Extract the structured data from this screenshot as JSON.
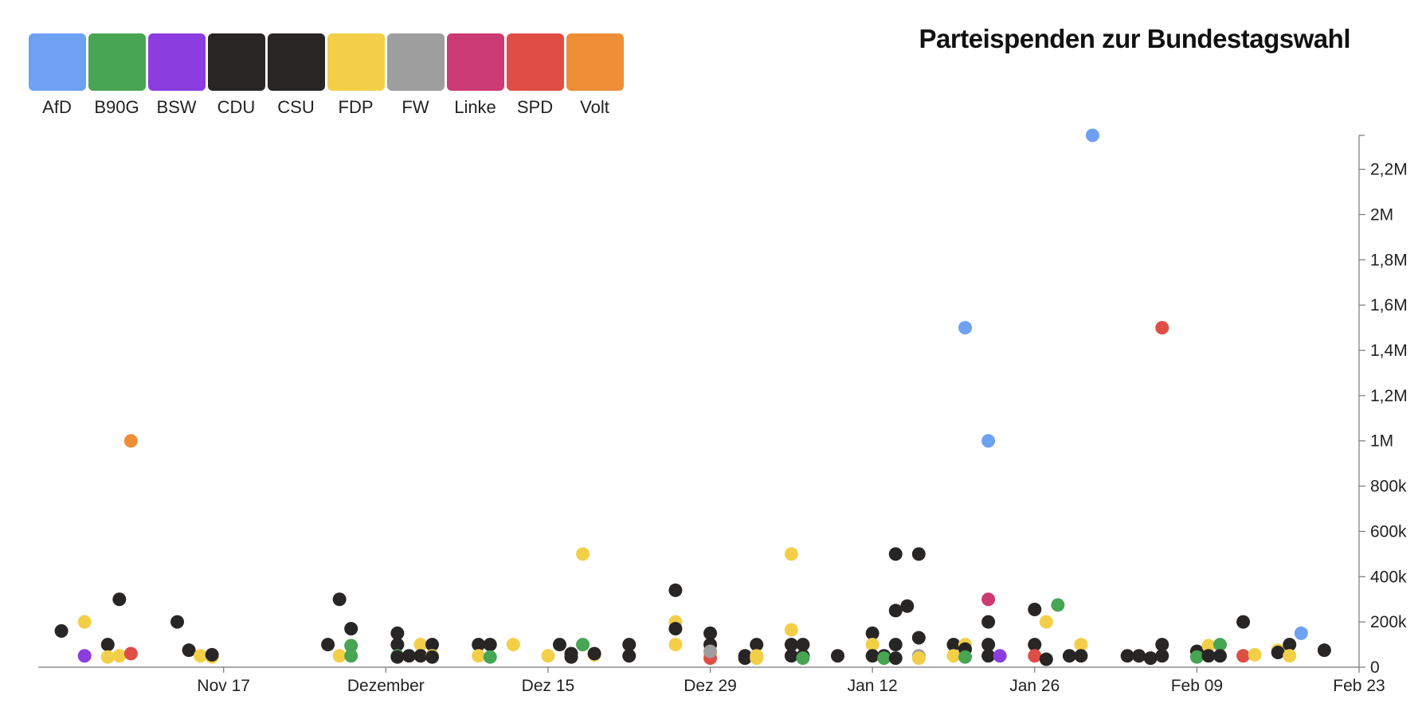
{
  "title": "Parteispenden zur Bundestagswahl",
  "legend": [
    {
      "label": "AfD",
      "color": "#6ea1f2"
    },
    {
      "label": "B90G",
      "color": "#47a553"
    },
    {
      "label": "BSW",
      "color": "#8b3ddf"
    },
    {
      "label": "CDU",
      "color": "#282525"
    },
    {
      "label": "CSU",
      "color": "#282525"
    },
    {
      "label": "FDP",
      "color": "#f3cf48"
    },
    {
      "label": "FW",
      "color": "#9e9e9e"
    },
    {
      "label": "Linke",
      "color": "#cc3b73"
    },
    {
      "label": "SPD",
      "color": "#df4e44"
    },
    {
      "label": "Volt",
      "color": "#ee8e37"
    }
  ],
  "chart_data": {
    "type": "scatter",
    "x_axis": {
      "range": [
        "2024-11-01",
        "2025-02-23"
      ],
      "ticks": [
        {
          "date": "2024-11-17",
          "label": "Nov 17"
        },
        {
          "date": "2024-12-01",
          "label": "Dezember"
        },
        {
          "date": "2024-12-15",
          "label": "Dez 15"
        },
        {
          "date": "2024-12-29",
          "label": "Dez 29"
        },
        {
          "date": "2025-01-12",
          "label": "Jan 12"
        },
        {
          "date": "2025-01-26",
          "label": "Jan 26"
        },
        {
          "date": "2025-02-09",
          "label": "Feb 09"
        },
        {
          "date": "2025-02-23",
          "label": "Feb 23"
        }
      ]
    },
    "y_axis": {
      "range": [
        0,
        2350000
      ],
      "position": "right",
      "ticks": [
        {
          "value": 0,
          "label": "0"
        },
        {
          "value": 200000,
          "label": "200k"
        },
        {
          "value": 400000,
          "label": "400k"
        },
        {
          "value": 600000,
          "label": "600k"
        },
        {
          "value": 800000,
          "label": "800k"
        },
        {
          "value": 1000000,
          "label": "1M"
        },
        {
          "value": 1200000,
          "label": "1,2M"
        },
        {
          "value": 1400000,
          "label": "1,4M"
        },
        {
          "value": 1600000,
          "label": "1,6M"
        },
        {
          "value": 1800000,
          "label": "1,8M"
        },
        {
          "value": 2000000,
          "label": "2M"
        },
        {
          "value": 2200000,
          "label": "2,2M"
        }
      ]
    },
    "points": [
      {
        "date": "2024-11-03",
        "value": 160000,
        "party": "CDU"
      },
      {
        "date": "2024-11-05",
        "value": 200000,
        "party": "FDP"
      },
      {
        "date": "2024-11-05",
        "value": 50000,
        "party": "BSW"
      },
      {
        "date": "2024-11-07",
        "value": 100000,
        "party": "CDU"
      },
      {
        "date": "2024-11-07",
        "value": 45000,
        "party": "FDP"
      },
      {
        "date": "2024-11-08",
        "value": 300000,
        "party": "CDU"
      },
      {
        "date": "2024-11-08",
        "value": 50000,
        "party": "FDP"
      },
      {
        "date": "2024-11-09",
        "value": 1000000,
        "party": "Volt"
      },
      {
        "date": "2024-11-09",
        "value": 60000,
        "party": "SPD"
      },
      {
        "date": "2024-11-13",
        "value": 200000,
        "party": "CDU"
      },
      {
        "date": "2024-11-14",
        "value": 75000,
        "party": "CDU"
      },
      {
        "date": "2024-11-15",
        "value": 50000,
        "party": "FDP"
      },
      {
        "date": "2024-11-16",
        "value": 45000,
        "party": "FDP"
      },
      {
        "date": "2024-11-16",
        "value": 55000,
        "party": "CDU"
      },
      {
        "date": "2024-11-26",
        "value": 100000,
        "party": "CDU"
      },
      {
        "date": "2024-11-27",
        "value": 300000,
        "party": "CDU"
      },
      {
        "date": "2024-11-27",
        "value": 50000,
        "party": "FDP"
      },
      {
        "date": "2024-11-28",
        "value": 170000,
        "party": "CDU"
      },
      {
        "date": "2024-11-28",
        "value": 95000,
        "party": "B90G"
      },
      {
        "date": "2024-11-28",
        "value": 50000,
        "party": "B90G"
      },
      {
        "date": "2024-12-02",
        "value": 150000,
        "party": "CDU"
      },
      {
        "date": "2024-12-02",
        "value": 100000,
        "party": "CDU"
      },
      {
        "date": "2024-12-02",
        "value": 50000,
        "party": "B90G"
      },
      {
        "date": "2024-12-02",
        "value": 45000,
        "party": "CDU"
      },
      {
        "date": "2024-12-03",
        "value": 50000,
        "party": "CDU"
      },
      {
        "date": "2024-12-04",
        "value": 100000,
        "party": "FDP"
      },
      {
        "date": "2024-12-04",
        "value": 50000,
        "party": "CDU"
      },
      {
        "date": "2024-12-05",
        "value": 100000,
        "party": "CDU"
      },
      {
        "date": "2024-12-05",
        "value": 50000,
        "party": "FDP"
      },
      {
        "date": "2024-12-05",
        "value": 45000,
        "party": "CDU"
      },
      {
        "date": "2024-12-09",
        "value": 100000,
        "party": "CDU"
      },
      {
        "date": "2024-12-09",
        "value": 50000,
        "party": "FDP"
      },
      {
        "date": "2024-12-10",
        "value": 100000,
        "party": "CDU"
      },
      {
        "date": "2024-12-10",
        "value": 45000,
        "party": "B90G"
      },
      {
        "date": "2024-12-12",
        "value": 100000,
        "party": "FDP"
      },
      {
        "date": "2024-12-15",
        "value": 50000,
        "party": "FDP"
      },
      {
        "date": "2024-12-16",
        "value": 100000,
        "party": "CDU"
      },
      {
        "date": "2024-12-17",
        "value": 60000,
        "party": "CDU"
      },
      {
        "date": "2024-12-17",
        "value": 45000,
        "party": "CDU"
      },
      {
        "date": "2024-12-18",
        "value": 500000,
        "party": "FDP"
      },
      {
        "date": "2024-12-18",
        "value": 100000,
        "party": "B90G"
      },
      {
        "date": "2024-12-19",
        "value": 55000,
        "party": "FDP"
      },
      {
        "date": "2024-12-19",
        "value": 60000,
        "party": "CDU"
      },
      {
        "date": "2024-12-22",
        "value": 100000,
        "party": "CDU"
      },
      {
        "date": "2024-12-22",
        "value": 50000,
        "party": "CDU"
      },
      {
        "date": "2024-12-26",
        "value": 340000,
        "party": "CDU"
      },
      {
        "date": "2024-12-26",
        "value": 200000,
        "party": "FDP"
      },
      {
        "date": "2024-12-26",
        "value": 170000,
        "party": "CDU"
      },
      {
        "date": "2024-12-26",
        "value": 100000,
        "party": "FDP"
      },
      {
        "date": "2024-12-29",
        "value": 150000,
        "party": "CDU"
      },
      {
        "date": "2024-12-29",
        "value": 100000,
        "party": "CDU"
      },
      {
        "date": "2024-12-29",
        "value": 60000,
        "party": "FDP"
      },
      {
        "date": "2024-12-29",
        "value": 40000,
        "party": "SPD"
      },
      {
        "date": "2024-12-29",
        "value": 70000,
        "party": "FW"
      },
      {
        "date": "2025-01-01",
        "value": 50000,
        "party": "CDU"
      },
      {
        "date": "2025-01-01",
        "value": 40000,
        "party": "CDU"
      },
      {
        "date": "2025-01-02",
        "value": 100000,
        "party": "CDU"
      },
      {
        "date": "2025-01-02",
        "value": 50000,
        "party": "FDP"
      },
      {
        "date": "2025-01-02",
        "value": 40000,
        "party": "FDP"
      },
      {
        "date": "2025-01-05",
        "value": 500000,
        "party": "FDP"
      },
      {
        "date": "2025-01-05",
        "value": 165000,
        "party": "FDP"
      },
      {
        "date": "2025-01-05",
        "value": 100000,
        "party": "CDU"
      },
      {
        "date": "2025-01-05",
        "value": 50000,
        "party": "CDU"
      },
      {
        "date": "2025-01-06",
        "value": 100000,
        "party": "CDU"
      },
      {
        "date": "2025-01-06",
        "value": 50000,
        "party": "CDU"
      },
      {
        "date": "2025-01-06",
        "value": 40000,
        "party": "B90G"
      },
      {
        "date": "2025-01-09",
        "value": 50000,
        "party": "CDU"
      },
      {
        "date": "2025-01-12",
        "value": 150000,
        "party": "CDU"
      },
      {
        "date": "2025-01-12",
        "value": 100000,
        "party": "FDP"
      },
      {
        "date": "2025-01-12",
        "value": 50000,
        "party": "CDU"
      },
      {
        "date": "2025-01-13",
        "value": 50000,
        "party": "CDU"
      },
      {
        "date": "2025-01-13",
        "value": 40000,
        "party": "B90G"
      },
      {
        "date": "2025-01-14",
        "value": 500000,
        "party": "CDU"
      },
      {
        "date": "2025-01-14",
        "value": 250000,
        "party": "CDU"
      },
      {
        "date": "2025-01-14",
        "value": 100000,
        "party": "CDU"
      },
      {
        "date": "2025-01-14",
        "value": 40000,
        "party": "CDU"
      },
      {
        "date": "2025-01-15",
        "value": 270000,
        "party": "CDU"
      },
      {
        "date": "2025-01-16",
        "value": 500000,
        "party": "CDU"
      },
      {
        "date": "2025-01-16",
        "value": 130000,
        "party": "CDU"
      },
      {
        "date": "2025-01-16",
        "value": 50000,
        "party": "FW"
      },
      {
        "date": "2025-01-16",
        "value": 40000,
        "party": "FDP"
      },
      {
        "date": "2025-01-19",
        "value": 100000,
        "party": "CDU"
      },
      {
        "date": "2025-01-19",
        "value": 50000,
        "party": "FDP"
      },
      {
        "date": "2025-01-20",
        "value": 1500000,
        "party": "AfD"
      },
      {
        "date": "2025-01-20",
        "value": 100000,
        "party": "FDP"
      },
      {
        "date": "2025-01-20",
        "value": 80000,
        "party": "CDU"
      },
      {
        "date": "2025-01-20",
        "value": 45000,
        "party": "B90G"
      },
      {
        "date": "2025-01-22",
        "value": 1000000,
        "party": "AfD"
      },
      {
        "date": "2025-01-22",
        "value": 300000,
        "party": "Linke"
      },
      {
        "date": "2025-01-22",
        "value": 200000,
        "party": "CDU"
      },
      {
        "date": "2025-01-22",
        "value": 100000,
        "party": "CDU"
      },
      {
        "date": "2025-01-22",
        "value": 50000,
        "party": "CDU"
      },
      {
        "date": "2025-01-23",
        "value": 50000,
        "party": "BSW"
      },
      {
        "date": "2025-01-26",
        "value": 255000,
        "party": "CDU"
      },
      {
        "date": "2025-01-26",
        "value": 100000,
        "party": "CDU"
      },
      {
        "date": "2025-01-26",
        "value": 50000,
        "party": "SPD"
      },
      {
        "date": "2025-01-27",
        "value": 200000,
        "party": "FDP"
      },
      {
        "date": "2025-01-27",
        "value": 35000,
        "party": "CDU"
      },
      {
        "date": "2025-01-28",
        "value": 275000,
        "party": "B90G"
      },
      {
        "date": "2025-01-29",
        "value": 50000,
        "party": "CDU"
      },
      {
        "date": "2025-01-30",
        "value": 100000,
        "party": "FDP"
      },
      {
        "date": "2025-01-30",
        "value": 50000,
        "party": "CDU"
      },
      {
        "date": "2025-01-31",
        "value": 2350000,
        "party": "AfD"
      },
      {
        "date": "2025-02-03",
        "value": 50000,
        "party": "CDU"
      },
      {
        "date": "2025-02-04",
        "value": 50000,
        "party": "CDU"
      },
      {
        "date": "2025-02-05",
        "value": 40000,
        "party": "CDU"
      },
      {
        "date": "2025-02-06",
        "value": 1500000,
        "party": "SPD"
      },
      {
        "date": "2025-02-06",
        "value": 100000,
        "party": "CDU"
      },
      {
        "date": "2025-02-06",
        "value": 50000,
        "party": "CDU"
      },
      {
        "date": "2025-02-09",
        "value": 70000,
        "party": "CDU"
      },
      {
        "date": "2025-02-09",
        "value": 45000,
        "party": "B90G"
      },
      {
        "date": "2025-02-10",
        "value": 95000,
        "party": "FDP"
      },
      {
        "date": "2025-02-10",
        "value": 50000,
        "party": "CDU"
      },
      {
        "date": "2025-02-11",
        "value": 100000,
        "party": "B90G"
      },
      {
        "date": "2025-02-11",
        "value": 50000,
        "party": "CDU"
      },
      {
        "date": "2025-02-13",
        "value": 200000,
        "party": "CDU"
      },
      {
        "date": "2025-02-13",
        "value": 50000,
        "party": "SPD"
      },
      {
        "date": "2025-02-14",
        "value": 55000,
        "party": "FDP"
      },
      {
        "date": "2025-02-16",
        "value": 75000,
        "party": "FDP"
      },
      {
        "date": "2025-02-16",
        "value": 65000,
        "party": "CDU"
      },
      {
        "date": "2025-02-17",
        "value": 100000,
        "party": "CDU"
      },
      {
        "date": "2025-02-17",
        "value": 50000,
        "party": "FDP"
      },
      {
        "date": "2025-02-18",
        "value": 150000,
        "party": "AfD"
      },
      {
        "date": "2025-02-20",
        "value": 75000,
        "party": "CDU"
      }
    ]
  }
}
